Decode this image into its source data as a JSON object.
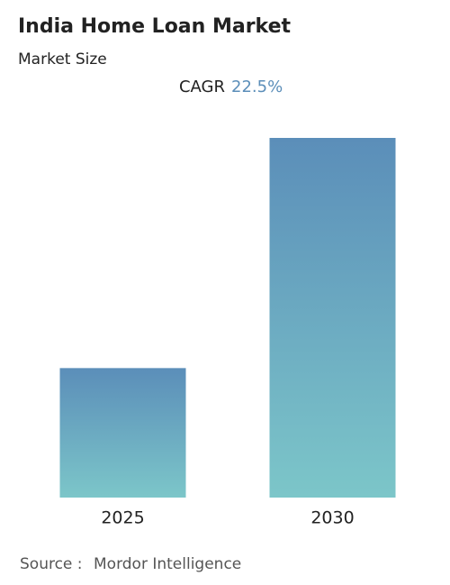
{
  "chart_data": {
    "type": "bar",
    "title": "India Home Loan Market",
    "subtitle": "Market Size",
    "cagr_label": "CAGR",
    "cagr_value": "22.5%",
    "categories": [
      "2025",
      "2030"
    ],
    "values": [
      36,
      100
    ],
    "gradient": [
      "#5b8eb9",
      "#7cc6c9"
    ],
    "source_label": "Source :",
    "source": "Mordor Intelligence"
  }
}
